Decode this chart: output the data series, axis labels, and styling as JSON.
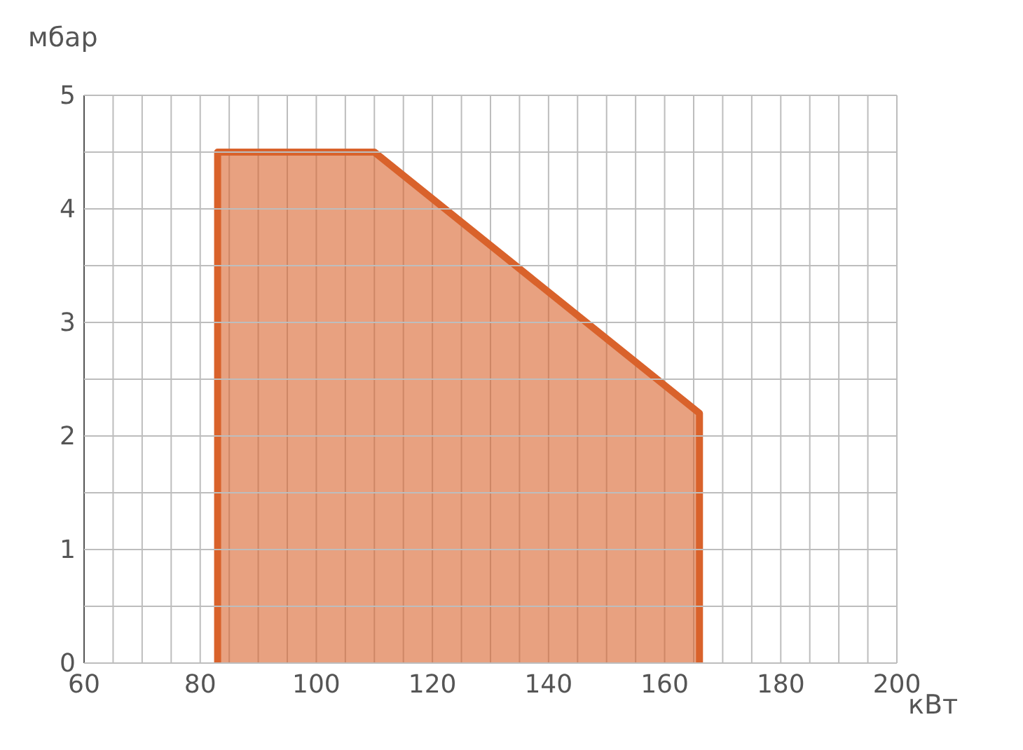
{
  "chart_data": {
    "type": "area",
    "xlabel": "кВт",
    "ylabel": "мбар",
    "series": [
      {
        "color": "#d9622b",
        "x": [
          83,
          83,
          110,
          166,
          166
        ],
        "values": [
          0,
          4.5,
          4.5,
          2.2,
          0
        ]
      }
    ],
    "xlim": [
      60,
      200
    ],
    "xticks": [
      60,
      {
        "value": 65,
        "label": null
      },
      {
        "value": 70,
        "label": null
      },
      {
        "value": 75,
        "label": null
      },
      80,
      {
        "value": 85,
        "label": null
      },
      {
        "value": 90,
        "label": null
      },
      {
        "value": 95,
        "label": null
      },
      100,
      {
        "value": 105,
        "label": null
      },
      {
        "value": 110,
        "label": null
      },
      {
        "value": 115,
        "label": null
      },
      120,
      {
        "value": 125,
        "label": null
      },
      {
        "value": 130,
        "label": null
      },
      {
        "value": 135,
        "label": null
      },
      140,
      {
        "value": 145,
        "label": null
      },
      {
        "value": 150,
        "label": null
      },
      {
        "value": 155,
        "label": null
      },
      160,
      {
        "value": 165,
        "label": null
      },
      {
        "value": 170,
        "label": null
      },
      {
        "value": 175,
        "label": null
      },
      180,
      {
        "value": 185,
        "label": null
      },
      {
        "value": 190,
        "label": null
      },
      {
        "value": 195,
        "label": null
      },
      200
    ],
    "ylim": [
      0,
      5
    ],
    "yticks": [
      0,
      {
        "value": 0.5,
        "label": null
      },
      1,
      {
        "value": 1.5,
        "label": null
      },
      2,
      {
        "value": 2.5,
        "label": null
      },
      3,
      {
        "value": 3.5,
        "label": null
      },
      4,
      {
        "value": 4.5,
        "label": null
      },
      5
    ],
    "grid": true
  }
}
